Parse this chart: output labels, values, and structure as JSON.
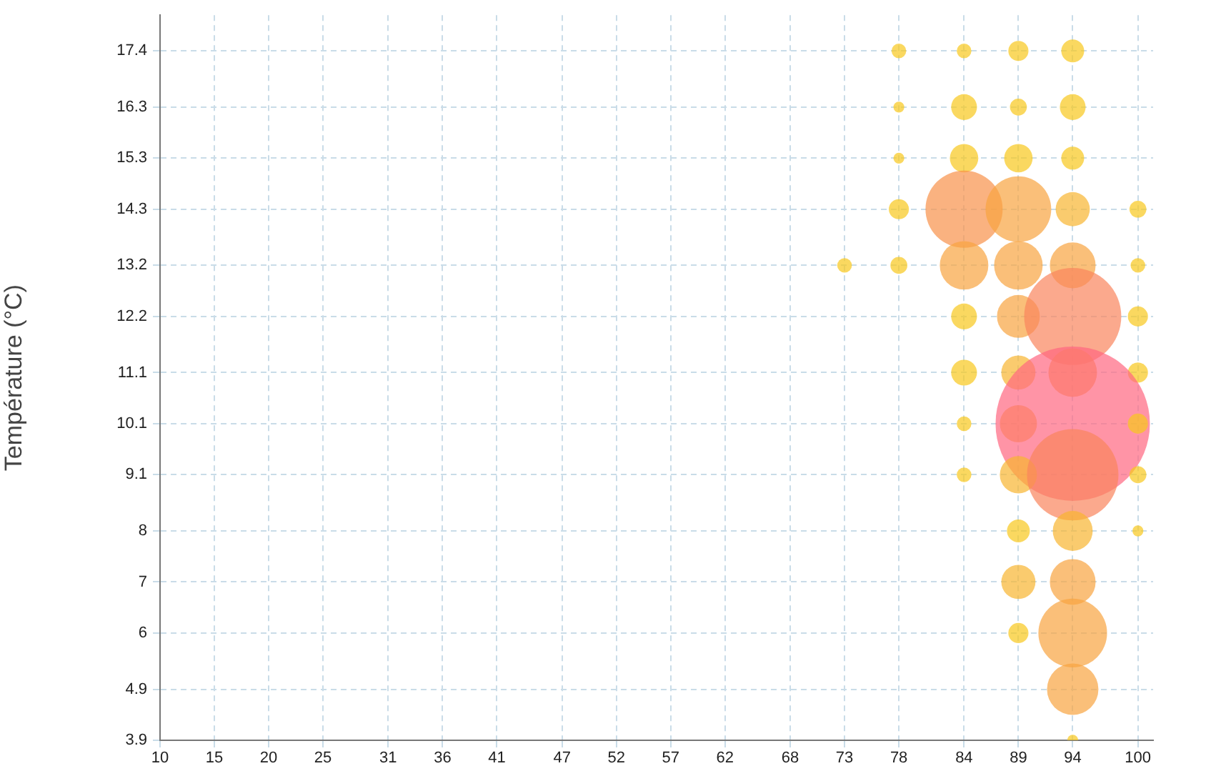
{
  "chart_data": {
    "type": "bubble",
    "ylabel": "Température (°C)",
    "xlim": [
      10,
      101.4
    ],
    "ylim": [
      3.9,
      18.1
    ],
    "xticks": [
      10,
      15,
      20,
      25,
      31,
      36,
      41,
      47,
      52,
      57,
      62,
      68,
      73,
      78,
      84,
      89,
      94,
      100
    ],
    "yticks": [
      3.9,
      4.9,
      6,
      7,
      8,
      9.1,
      10.1,
      11.1,
      12.2,
      13.2,
      14.3,
      15.3,
      16.3,
      17.4
    ],
    "grid": true,
    "legend": false,
    "x": [
      78,
      84,
      89,
      94,
      78,
      84,
      89,
      94,
      78,
      84,
      89,
      94,
      78,
      84,
      89,
      94,
      100,
      73,
      78,
      84,
      89,
      94,
      100,
      84,
      89,
      94,
      100,
      84,
      89,
      94,
      100,
      84,
      89,
      94,
      100,
      84,
      89,
      94,
      100,
      89,
      94,
      100,
      89,
      94,
      89,
      94,
      94,
      94
    ],
    "values": [
      17.4,
      17.4,
      17.4,
      17.4,
      16.3,
      16.3,
      16.3,
      16.3,
      15.3,
      15.3,
      15.3,
      15.3,
      14.3,
      14.3,
      14.3,
      14.3,
      14.3,
      13.2,
      13.2,
      13.2,
      13.2,
      13.2,
      13.2,
      12.2,
      12.2,
      12.2,
      12.2,
      11.1,
      11.1,
      11.1,
      11.1,
      10.1,
      10.1,
      10.1,
      10.1,
      9.1,
      9.1,
      9.1,
      9.1,
      8,
      8,
      8,
      7,
      7,
      6,
      6,
      4.9,
      3.9
    ],
    "sizes": [
      0.009,
      0.009,
      0.017,
      0.022,
      0.005,
      0.028,
      0.012,
      0.028,
      0.005,
      0.034,
      0.034,
      0.022,
      0.017,
      0.25,
      0.181,
      0.049,
      0.012,
      0.009,
      0.012,
      0.099,
      0.099,
      0.088,
      0.009,
      0.028,
      0.077,
      0.396,
      0.017,
      0.028,
      0.049,
      0.099,
      0.017,
      0.009,
      0.058,
      1,
      0.017,
      0.009,
      0.058,
      0.351,
      0.012,
      0.022,
      0.067,
      0.005,
      0.049,
      0.088,
      0.017,
      0.198,
      0.111,
      0.005
    ],
    "colors": [
      "#f8c81c",
      "#f8c81c",
      "#f8c81c",
      "#f8c81c",
      "#f8c81c",
      "#f8c81c",
      "#f8c81c",
      "#f8c81c",
      "#f8c81c",
      "#f8c81c",
      "#f8c81c",
      "#f8c81c",
      "#f8c81c",
      "#f8924a",
      "#f8a440",
      "#f8b530",
      "#f8c81c",
      "#f8c81c",
      "#f8c81c",
      "#f8a440",
      "#f8a440",
      "#f8a440",
      "#f8c81c",
      "#f8c81c",
      "#f8a440",
      "#f9845c",
      "#f8c81c",
      "#f8c81c",
      "#f8b530",
      "#f8a440",
      "#f8c81c",
      "#f8c81c",
      "#f8b530",
      "#ff6680",
      "#f8c81c",
      "#f8c81c",
      "#f8b530",
      "#f9845c",
      "#f8c81c",
      "#f8c81c",
      "#f8b530",
      "#f8c81c",
      "#f8b530",
      "#f8a440",
      "#f8c81c",
      "#f8a440",
      "#f8a440",
      "#f8c81c"
    ]
  }
}
